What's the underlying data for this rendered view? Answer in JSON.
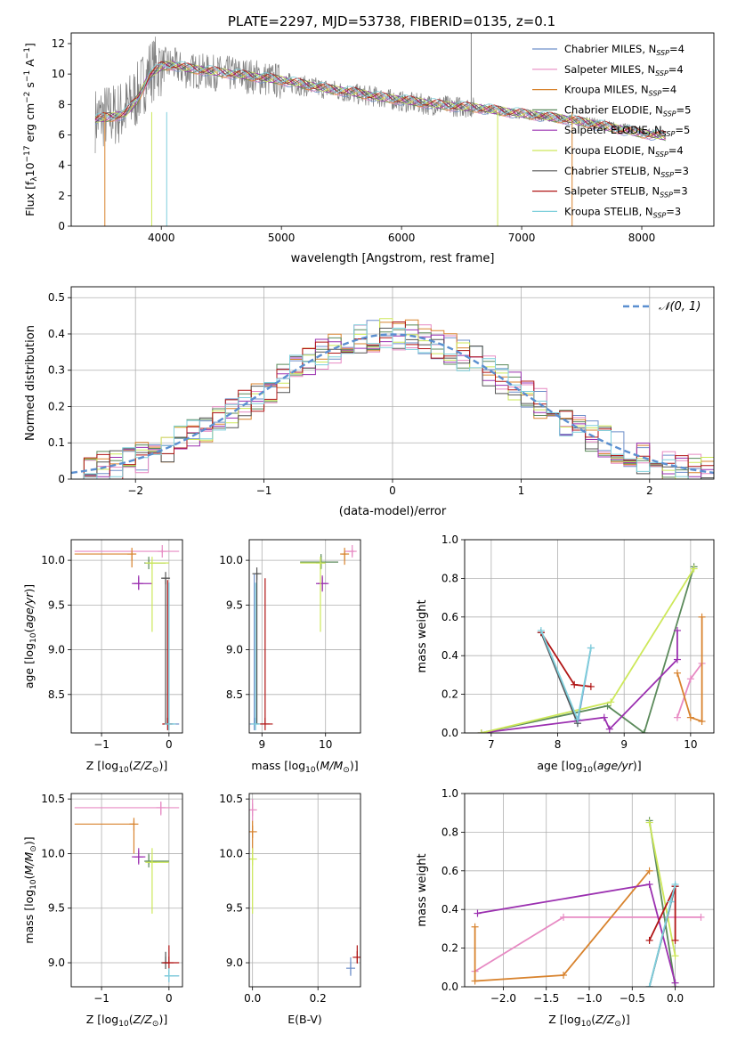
{
  "figure": {
    "title": "PLATE=2297, MJD=53738, FIBERID=0135, z=0.1"
  },
  "series": [
    {
      "name": "Chabrier MILES, N_SSP=4",
      "label_main": "Chabrier MILES, N",
      "label_sub": "SSP",
      "label_tail": "=4",
      "color": "#6e8fc9"
    },
    {
      "name": "Salpeter MILES, N_SSP=4",
      "label_main": "Salpeter MILES, N",
      "label_sub": "SSP",
      "label_tail": "=4",
      "color": "#e78ac3"
    },
    {
      "name": "Kroupa MILES, N_SSP=4",
      "label_main": "Kroupa MILES, N",
      "label_sub": "SSP",
      "label_tail": "=4",
      "color": "#d8832e"
    },
    {
      "name": "Chabrier ELODIE, N_SSP=5",
      "label_main": "Chabrier ELODIE, N",
      "label_sub": "SSP",
      "label_tail": "=5",
      "color": "#5b8a5b"
    },
    {
      "name": "Salpeter ELODIE, N_SSP=5",
      "label_main": "Salpeter ELODIE, N",
      "label_sub": "SSP",
      "label_tail": "=5",
      "color": "#9b30b0"
    },
    {
      "name": "Kroupa ELODIE, N_SSP=4",
      "label_main": "Kroupa ELODIE, N",
      "label_sub": "SSP",
      "label_tail": "=4",
      "color": "#cde85a"
    },
    {
      "name": "Chabrier STELIB, N_SSP=3",
      "label_main": "Chabrier STELIB, N",
      "label_sub": "SSP",
      "label_tail": "=3",
      "color": "#555555"
    },
    {
      "name": "Salpeter STELIB, N_SSP=3",
      "label_main": "Salpeter STELIB, N",
      "label_sub": "SSP",
      "label_tail": "=3",
      "color": "#b01515"
    },
    {
      "name": "Kroupa STELIB, N_SSP=3",
      "label_main": "Kroupa STELIB, N",
      "label_sub": "SSP",
      "label_tail": "=3",
      "color": "#7ecfdc"
    }
  ],
  "chart_data": [
    {
      "id": "spectrum",
      "type": "line",
      "xlabel": "wavelength [Angstrom, rest frame]",
      "ylabel": "Flux [f_lambda 10^-17 erg cm^-2 s^-1 A^-1]",
      "xlim": [
        3250,
        8600
      ],
      "ylim": [
        0,
        12.7
      ],
      "xticks": [
        4000,
        5000,
        6000,
        7000,
        8000
      ],
      "yticks": [
        0,
        2,
        4,
        6,
        8,
        10,
        12
      ],
      "grid": false,
      "legend": "upper right",
      "data_color": "#808080",
      "data_approx": {
        "x": [
          3450,
          3500,
          3600,
          3700,
          3800,
          3900,
          4000,
          4100,
          4200,
          4300,
          4400,
          4600,
          4800,
          5000,
          5200,
          5400,
          5600,
          5800,
          6000,
          6200,
          6400,
          6600,
          6800,
          7000,
          7200,
          7400,
          7600,
          7800,
          8000,
          8200
        ],
        "y": [
          7.0,
          7.2,
          7.3,
          7.6,
          8.6,
          10.2,
          10.6,
          10.6,
          10.2,
          10.2,
          10.1,
          10.0,
          9.8,
          9.5,
          9.2,
          9.0,
          8.7,
          8.5,
          8.2,
          8.0,
          7.9,
          7.8,
          7.6,
          7.4,
          7.2,
          7.0,
          6.8,
          6.5,
          6.2,
          6.0
        ]
      },
      "model_approx": {
        "x": [
          3450,
          3500,
          3600,
          3700,
          3800,
          3900,
          4000,
          4100,
          4200,
          4300,
          4400,
          4600,
          4800,
          5000,
          5200,
          5400,
          5600,
          5800,
          6000,
          6200,
          6400,
          6600,
          6800,
          7000,
          7200,
          7400,
          7600,
          7800,
          8000,
          8200
        ],
        "y": [
          7.0,
          7.1,
          7.2,
          7.4,
          8.3,
          9.9,
          10.5,
          10.6,
          10.4,
          10.3,
          10.2,
          10.0,
          9.8,
          9.6,
          9.3,
          9.0,
          8.8,
          8.5,
          8.3,
          8.1,
          7.9,
          7.8,
          7.6,
          7.4,
          7.2,
          7.0,
          6.7,
          6.4,
          6.1,
          5.9
        ]
      }
    },
    {
      "id": "residuals",
      "type": "line",
      "xlabel": "(data-model)/error",
      "ylabel": "Normed distribution",
      "xlim": [
        -2.5,
        2.5
      ],
      "ylim": [
        0,
        0.53
      ],
      "xticks": [
        -2,
        -1,
        0,
        1,
        2
      ],
      "xticklabels": [
        "−2",
        "−1",
        "0",
        "1",
        "2"
      ],
      "yticks": [
        0.0,
        0.1,
        0.2,
        0.3,
        0.4,
        0.5
      ],
      "grid": true,
      "legend": "upper right",
      "reference": {
        "name": "N(0,1)",
        "mu": 0,
        "sigma": 1,
        "color": "#5b8fd0"
      },
      "hist_bin_width": 0.1
    },
    {
      "id": "age_vs_Z",
      "type": "scatter",
      "xlabel": "Z [log10(Z/Z_sun)]",
      "ylabel": "age [log10(age/yr)]",
      "xlim": [
        -1.45,
        0.2
      ],
      "ylim": [
        8.07,
        10.23
      ],
      "xticks": [
        -1,
        0
      ],
      "xticklabels": [
        "−1",
        "0"
      ],
      "yticks": [
        8.5,
        9.0,
        9.5,
        10.0
      ],
      "yticklabels": [
        "8.5",
        "9.0",
        "9.5",
        "10.0"
      ],
      "grid": true,
      "points": [
        {
          "s": 0,
          "x": 0.0,
          "y": 8.17,
          "xl": 0.0,
          "xh": 0.15,
          "yl": 8.17,
          "yh": 9.75
        },
        {
          "s": 1,
          "x": -0.1,
          "y": 10.1,
          "xl": -1.4,
          "xh": 0.15,
          "yl": 10.08,
          "yh": 10.12
        },
        {
          "s": 2,
          "x": -0.55,
          "y": 10.07,
          "xl": -1.4,
          "xh": -0.55,
          "yl": 9.92,
          "yh": 10.1
        },
        {
          "s": 3,
          "x": -0.3,
          "y": 9.97,
          "xl": -0.35,
          "xh": -0.05,
          "yl": 9.97,
          "yh": 10.0
        },
        {
          "s": 4,
          "x": -0.45,
          "y": 9.74,
          "xl": -0.55,
          "xh": -0.25,
          "yl": 9.67,
          "yh": 9.83
        },
        {
          "s": 5,
          "x": -0.25,
          "y": 9.97,
          "xl": -0.35,
          "xh": 0.0,
          "yl": 9.2,
          "yh": 10.0
        },
        {
          "s": 6,
          "x": -0.05,
          "y": 9.8,
          "xl": -0.1,
          "xh": 0.0,
          "yl": 8.17,
          "yh": 9.8
        },
        {
          "s": 7,
          "x": -0.02,
          "y": 8.17,
          "xl": -0.1,
          "xh": 0.05,
          "yl": 8.17,
          "yh": 9.78
        },
        {
          "s": 8,
          "x": 0.0,
          "y": 8.17,
          "xl": -0.05,
          "xh": 0.1,
          "yl": 8.17,
          "yh": 9.75
        }
      ]
    },
    {
      "id": "age_vs_mass",
      "type": "scatter",
      "xlabel": "mass [log10(M/M_sun)]",
      "ylabel": "",
      "xlim": [
        8.8,
        10.55
      ],
      "ylim": [
        8.07,
        10.23
      ],
      "xticks": [
        9,
        10
      ],
      "xticklabels": [
        "9",
        "10"
      ],
      "yticks": [
        8.5,
        9.0,
        9.5,
        10.0
      ],
      "yticklabels": [
        "8.5",
        "9.0",
        "9.5",
        "10.0"
      ],
      "grid": true,
      "points": [
        {
          "s": 0,
          "x": 8.88,
          "y": 8.17,
          "xl": 8.88,
          "xh": 8.95,
          "yl": 8.17,
          "yh": 9.85
        },
        {
          "s": 1,
          "x": 10.42,
          "y": 10.1,
          "xl": 10.3,
          "xh": 10.45,
          "yl": 10.05,
          "yh": 10.12
        },
        {
          "s": 2,
          "x": 10.3,
          "y": 10.07,
          "xl": 10.25,
          "xh": 10.32,
          "yl": 9.95,
          "yh": 10.1
        },
        {
          "s": 3,
          "x": 9.93,
          "y": 9.98,
          "xl": 9.6,
          "xh": 10.2,
          "yl": 9.9,
          "yh": 10.07
        },
        {
          "s": 4,
          "x": 9.95,
          "y": 9.74,
          "xl": 9.85,
          "xh": 10.05,
          "yl": 9.65,
          "yh": 9.83
        },
        {
          "s": 5,
          "x": 9.92,
          "y": 9.97,
          "xl": 9.6,
          "xh": 10.0,
          "yl": 9.2,
          "yh": 10.02
        },
        {
          "s": 6,
          "x": 8.92,
          "y": 9.85,
          "xl": 8.9,
          "xh": 8.95,
          "yl": 8.17,
          "yh": 9.85
        },
        {
          "s": 7,
          "x": 9.05,
          "y": 8.17,
          "xl": 8.92,
          "xh": 9.17,
          "yl": 8.17,
          "yh": 9.8
        },
        {
          "s": 8,
          "x": 8.9,
          "y": 8.17,
          "xl": 8.88,
          "xh": 8.95,
          "yl": 8.17,
          "yh": 9.75
        }
      ]
    },
    {
      "id": "weight_vs_age",
      "type": "line",
      "xlabel": "age [log10(age/yr)]",
      "ylabel": "mass weight",
      "xlim": [
        6.6,
        10.35
      ],
      "ylim": [
        0,
        1.0
      ],
      "xticks": [
        7,
        8,
        9,
        10
      ],
      "xticklabels": [
        "7",
        "8",
        "9",
        "10"
      ],
      "yticks": [
        0.0,
        0.2,
        0.4,
        0.6,
        0.8,
        1.0
      ],
      "yticklabels": [
        "0.0",
        "0.2",
        "0.4",
        "0.6",
        "0.8",
        "1.0"
      ],
      "grid": true,
      "lines": [
        {
          "s": 0,
          "x": [
            7.75,
            8.3,
            8.5
          ],
          "y": [
            0.52,
            0.05,
            0.44
          ]
        },
        {
          "s": 1,
          "x": [
            9.8,
            10.0,
            10.17
          ],
          "y": [
            0.08,
            0.28,
            0.36
          ]
        },
        {
          "s": 2,
          "x": [
            9.8,
            10.0,
            10.17,
            10.17
          ],
          "y": [
            0.31,
            0.08,
            0.06,
            0.6
          ]
        },
        {
          "s": 3,
          "x": [
            6.85,
            8.75,
            9.3,
            10.05
          ],
          "y": [
            0.0,
            0.14,
            0.0,
            0.86
          ]
        },
        {
          "s": 4,
          "x": [
            6.85,
            8.7,
            8.78,
            9.8,
            9.8
          ],
          "y": [
            0.0,
            0.08,
            0.02,
            0.38,
            0.53
          ]
        },
        {
          "s": 5,
          "x": [
            6.85,
            8.8,
            10.05
          ],
          "y": [
            0.0,
            0.16,
            0.85
          ]
        },
        {
          "s": 6,
          "x": [
            7.75,
            8.3
          ],
          "y": [
            0.52,
            0.05
          ]
        },
        {
          "s": 7,
          "x": [
            7.75,
            8.25,
            8.5
          ],
          "y": [
            0.52,
            0.25,
            0.24
          ]
        },
        {
          "s": 8,
          "x": [
            7.75,
            8.3,
            8.5
          ],
          "y": [
            0.53,
            0.07,
            0.44
          ]
        }
      ]
    },
    {
      "id": "mass_vs_Z",
      "type": "scatter",
      "xlabel": "Z [log10(Z/Z_sun)]",
      "ylabel": "mass [log10(M/M_sun)]",
      "xlim": [
        -1.45,
        0.2
      ],
      "ylim": [
        8.78,
        10.55
      ],
      "xticks": [
        -1,
        0
      ],
      "xticklabels": [
        "−1",
        "0"
      ],
      "yticks": [
        9.0,
        9.5,
        10.0,
        10.5
      ],
      "yticklabels": [
        "9.0",
        "9.5",
        "10.0",
        "10.5"
      ],
      "grid": true,
      "points": [
        {
          "s": 0,
          "x": 0.0,
          "y": 8.88,
          "xl": -0.05,
          "xh": 0.15,
          "yl": 8.88,
          "yh": 8.92
        },
        {
          "s": 1,
          "x": -0.12,
          "y": 10.42,
          "xl": -1.4,
          "xh": 0.15,
          "yl": 10.35,
          "yh": 10.47
        },
        {
          "s": 2,
          "x": -0.52,
          "y": 10.27,
          "xl": -1.4,
          "xh": -0.52,
          "yl": 10.0,
          "yh": 10.3
        },
        {
          "s": 3,
          "x": -0.3,
          "y": 9.93,
          "xl": -0.35,
          "xh": 0.0,
          "yl": 9.9,
          "yh": 10.0
        },
        {
          "s": 4,
          "x": -0.45,
          "y": 9.97,
          "xl": -0.55,
          "xh": -0.35,
          "yl": 9.9,
          "yh": 10.05
        },
        {
          "s": 5,
          "x": -0.25,
          "y": 9.92,
          "xl": -0.35,
          "xh": 0.0,
          "yl": 9.45,
          "yh": 10.05
        },
        {
          "s": 6,
          "x": -0.05,
          "y": 9.0,
          "xl": -0.1,
          "xh": 0.0,
          "yl": 9.0,
          "yh": 9.1
        },
        {
          "s": 7,
          "x": 0.0,
          "y": 9.0,
          "xl": -0.1,
          "xh": 0.15,
          "yl": 9.0,
          "yh": 9.16
        },
        {
          "s": 8,
          "x": 0.0,
          "y": 8.88,
          "xl": -0.05,
          "xh": 0.15,
          "yl": 8.88,
          "yh": 8.95
        }
      ]
    },
    {
      "id": "mass_vs_ebv",
      "type": "scatter",
      "xlabel": "E(B-V)",
      "ylabel": "",
      "xlim": [
        -0.01,
        0.33
      ],
      "ylim": [
        8.78,
        10.55
      ],
      "xticks": [
        0.0,
        0.2
      ],
      "xticklabels": [
        "0.0",
        "0.2"
      ],
      "yticks": [
        9.0,
        9.5,
        10.0,
        10.5
      ],
      "yticklabels": [
        "9.0",
        "9.5",
        "10.0",
        "10.5"
      ],
      "grid": true,
      "points": [
        {
          "s": 1,
          "x": 0.0,
          "y": 10.4,
          "xl": 0.0,
          "xh": 0.0,
          "yl": 10.3,
          "yh": 10.5
        },
        {
          "s": 2,
          "x": 0.0,
          "y": 10.2,
          "xl": 0.0,
          "xh": 0.0,
          "yl": 10.0,
          "yh": 10.3
        },
        {
          "s": 5,
          "x": 0.0,
          "y": 9.95,
          "xl": 0.0,
          "xh": 0.0,
          "yl": 9.45,
          "yh": 10.05
        },
        {
          "s": 0,
          "x": 0.3,
          "y": 8.95,
          "xl": 0.3,
          "xh": 0.3,
          "yl": 8.88,
          "yh": 9.05
        },
        {
          "s": 7,
          "x": 0.32,
          "y": 9.05,
          "xl": 0.32,
          "xh": 0.32,
          "yl": 9.0,
          "yh": 9.16
        }
      ]
    },
    {
      "id": "weight_vs_Z",
      "type": "line",
      "xlabel": "Z [log10(Z/Z_sun)]",
      "ylabel": "mass weight",
      "xlim": [
        -2.45,
        0.45
      ],
      "ylim": [
        0,
        1.0
      ],
      "xticks": [
        -2.0,
        -1.5,
        -1.0,
        -0.5,
        0.0
      ],
      "xticklabels": [
        "−2.0",
        "−1.5",
        "−1.0",
        "−0.5",
        "0.0"
      ],
      "yticks": [
        0.0,
        0.2,
        0.4,
        0.6,
        0.8,
        1.0
      ],
      "yticklabels": [
        "0.0",
        "0.2",
        "0.4",
        "0.6",
        "0.8",
        "1.0"
      ],
      "grid": true,
      "lines": [
        {
          "s": 0,
          "x": [
            -0.3,
            0.0,
            -0.05
          ],
          "y": [
            0.0,
            0.52,
            0.44
          ]
        },
        {
          "s": 1,
          "x": [
            -2.33,
            -1.3,
            0.3
          ],
          "y": [
            0.08,
            0.36,
            0.36
          ]
        },
        {
          "s": 2,
          "x": [
            -2.33,
            -2.33,
            -1.3,
            -0.3
          ],
          "y": [
            0.31,
            0.03,
            0.06,
            0.6
          ]
        },
        {
          "s": 3,
          "x": [
            -0.3,
            0.0
          ],
          "y": [
            0.86,
            0.0
          ]
        },
        {
          "s": 4,
          "x": [
            -2.3,
            -0.3,
            0.0
          ],
          "y": [
            0.38,
            0.53,
            0.02
          ]
        },
        {
          "s": 5,
          "x": [
            -0.3,
            0.0
          ],
          "y": [
            0.85,
            0.16
          ]
        },
        {
          "s": 6,
          "x": [
            -0.3,
            0.0
          ],
          "y": [
            0.0,
            0.52
          ]
        },
        {
          "s": 7,
          "x": [
            -0.3,
            0.0,
            0.0
          ],
          "y": [
            0.24,
            0.52,
            0.24
          ]
        },
        {
          "s": 8,
          "x": [
            -0.3,
            0.0,
            -0.05
          ],
          "y": [
            0.0,
            0.53,
            0.44
          ]
        }
      ]
    }
  ]
}
